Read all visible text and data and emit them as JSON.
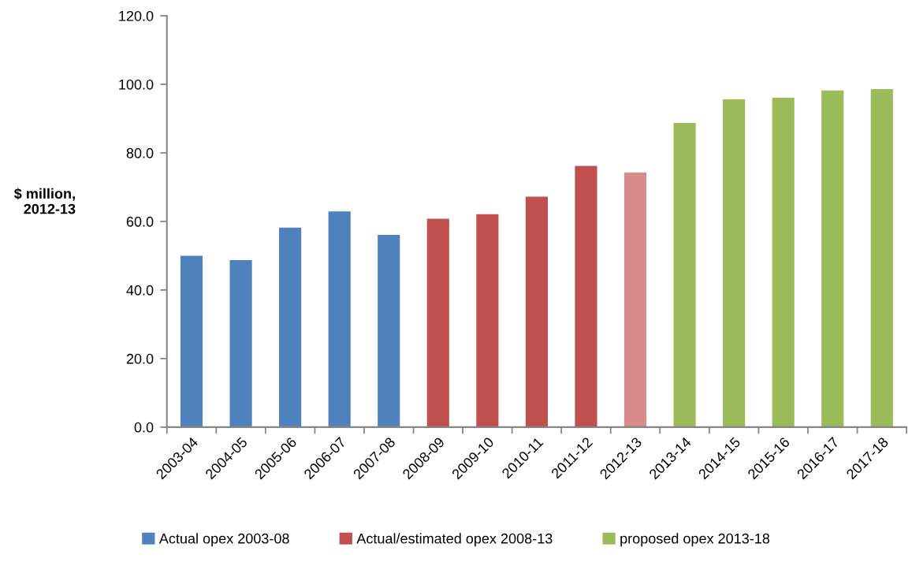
{
  "chart_data": {
    "type": "bar",
    "ylabel": "$ million,\n2012-13",
    "categories": [
      "2003-04",
      "2004-05",
      "2005-06",
      "2006-07",
      "2007-08",
      "2008-09",
      "2009-10",
      "2010-11",
      "2011-12",
      "2012-13",
      "2013-14",
      "2014-15",
      "2015-16",
      "2016-17",
      "2017-18"
    ],
    "series": [
      {
        "name": "Actual opex 2003-08",
        "color": "#4f81bd",
        "values": [
          50.0,
          48.7,
          58.2,
          62.9,
          56.1,
          null,
          null,
          null,
          null,
          null,
          null,
          null,
          null,
          null,
          null
        ]
      },
      {
        "name": "Actual/estimated opex 2008-13",
        "color": "#c0504d",
        "colors": [
          null,
          null,
          null,
          null,
          null,
          "#c0504d",
          "#c0504d",
          "#c0504d",
          "#c0504d",
          "#d68d8b",
          null,
          null,
          null,
          null,
          null
        ],
        "values": [
          null,
          null,
          null,
          null,
          null,
          60.8,
          62.1,
          67.2,
          76.2,
          74.3,
          null,
          null,
          null,
          null,
          null
        ]
      },
      {
        "name": "proposed opex 2013-18",
        "color": "#9bbb59",
        "values": [
          null,
          null,
          null,
          null,
          null,
          null,
          null,
          null,
          null,
          null,
          88.7,
          95.6,
          96.1,
          98.2,
          98.6
        ]
      }
    ],
    "ylim": [
      0,
      120
    ],
    "yticks": [
      {
        "value": 0,
        "label": "0.0"
      },
      {
        "value": 20,
        "label": "20.0"
      },
      {
        "value": 40,
        "label": "40.0"
      },
      {
        "value": 60,
        "label": "60.0"
      },
      {
        "value": 80,
        "label": "80.0"
      },
      {
        "value": 100,
        "label": "100.0"
      },
      {
        "value": 120,
        "label": "120.0"
      }
    ],
    "grid": false,
    "legend": "bottom"
  }
}
